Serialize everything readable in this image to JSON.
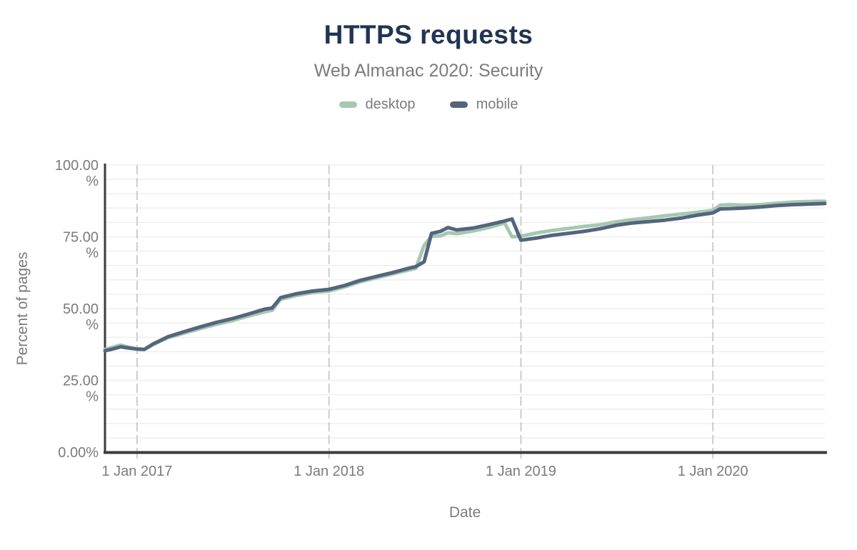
{
  "header": {
    "title": "HTTPS requests",
    "subtitle": "Web Almanac 2020: Security"
  },
  "legend": {
    "items": [
      {
        "label": "desktop",
        "color": "#a6c8b2"
      },
      {
        "label": "mobile",
        "color": "#54657d"
      }
    ]
  },
  "colors": {
    "title": "#203454",
    "text_muted": "#7b7b7b",
    "axis": "#3b3b3b",
    "grid_vertical": "#cccccc",
    "grid_horizontal": "#efefef",
    "background": "#ffffff"
  },
  "chart_data": {
    "type": "line",
    "title": "HTTPS requests",
    "subtitle": "Web Almanac 2020: Security",
    "xlabel": "Date",
    "ylabel": "Percent of pages",
    "ylim": [
      0,
      100
    ],
    "x_range": [
      "2016-11-01",
      "2020-08-01"
    ],
    "legend_position": "top",
    "grid": {
      "horizontal_step_pct": 5,
      "vertical_gridlines": "dashed at each 1 Jan"
    },
    "x_ticks": [
      {
        "date": "2017-01-01",
        "label": "1 Jan 2017"
      },
      {
        "date": "2018-01-01",
        "label": "1 Jan 2018"
      },
      {
        "date": "2019-01-01",
        "label": "1 Jan 2019"
      },
      {
        "date": "2020-01-01",
        "label": "1 Jan 2020"
      }
    ],
    "y_ticks": [
      {
        "value": 100,
        "lines": [
          "100.00",
          "%"
        ]
      },
      {
        "value": 75,
        "lines": [
          "75.00",
          "%"
        ]
      },
      {
        "value": 50,
        "lines": [
          "50.00",
          "%"
        ]
      },
      {
        "value": 25,
        "lines": [
          "25.00",
          "%"
        ]
      },
      {
        "value": 0,
        "lines": [
          "0.00%"
        ]
      }
    ],
    "dates": [
      "2016-11-01",
      "2016-11-15",
      "2016-12-01",
      "2016-12-15",
      "2017-01-01",
      "2017-01-15",
      "2017-02-01",
      "2017-03-01",
      "2017-04-01",
      "2017-05-01",
      "2017-06-01",
      "2017-07-01",
      "2017-08-01",
      "2017-09-01",
      "2017-09-15",
      "2017-10-01",
      "2017-11-01",
      "2017-12-01",
      "2018-01-01",
      "2018-02-01",
      "2018-03-01",
      "2018-04-01",
      "2018-05-01",
      "2018-06-01",
      "2018-06-15",
      "2018-07-01",
      "2018-07-15",
      "2018-08-01",
      "2018-08-15",
      "2018-09-01",
      "2018-10-01",
      "2018-11-01",
      "2018-12-01",
      "2018-12-15",
      "2019-01-01",
      "2019-02-01",
      "2019-03-01",
      "2019-04-01",
      "2019-05-01",
      "2019-06-01",
      "2019-07-01",
      "2019-08-01",
      "2019-09-01",
      "2019-10-01",
      "2019-11-01",
      "2019-12-01",
      "2020-01-01",
      "2020-01-15",
      "2020-02-01",
      "2020-03-01",
      "2020-04-01",
      "2020-05-01",
      "2020-06-01",
      "2020-07-01",
      "2020-08-01"
    ],
    "series": [
      {
        "name": "desktop",
        "color": "#a6c8b2",
        "values": [
          35.8,
          36.5,
          37.3,
          36.6,
          36.0,
          35.8,
          37.5,
          39.9,
          41.5,
          43.0,
          44.5,
          45.8,
          47.4,
          48.9,
          49.4,
          53.2,
          54.6,
          55.6,
          56.1,
          57.6,
          59.3,
          60.7,
          62.0,
          63.4,
          64.0,
          72.0,
          75.2,
          75.3,
          76.4,
          76.1,
          77.0,
          78.2,
          79.8,
          75.0,
          75.2,
          76.4,
          77.2,
          77.9,
          78.6,
          79.2,
          80.2,
          81.0,
          81.6,
          82.3,
          82.9,
          83.5,
          84.2,
          86.0,
          86.2,
          86.0,
          86.2,
          86.7,
          87.1,
          87.3,
          87.4
        ]
      },
      {
        "name": "mobile",
        "color": "#54657d",
        "values": [
          35.3,
          35.9,
          36.7,
          36.3,
          35.9,
          35.8,
          37.7,
          40.2,
          42.0,
          43.6,
          45.2,
          46.5,
          48.1,
          49.8,
          50.2,
          53.8,
          55.2,
          56.1,
          56.7,
          58.1,
          59.8,
          61.2,
          62.5,
          64.0,
          64.6,
          66.3,
          76.2,
          76.9,
          78.2,
          77.4,
          78.0,
          79.2,
          80.5,
          81.2,
          73.8,
          74.6,
          75.5,
          76.2,
          76.9,
          77.8,
          79.0,
          79.8,
          80.3,
          80.8,
          81.5,
          82.5,
          83.3,
          84.7,
          84.8,
          85.0,
          85.4,
          85.9,
          86.2,
          86.4,
          86.6
        ]
      }
    ]
  }
}
